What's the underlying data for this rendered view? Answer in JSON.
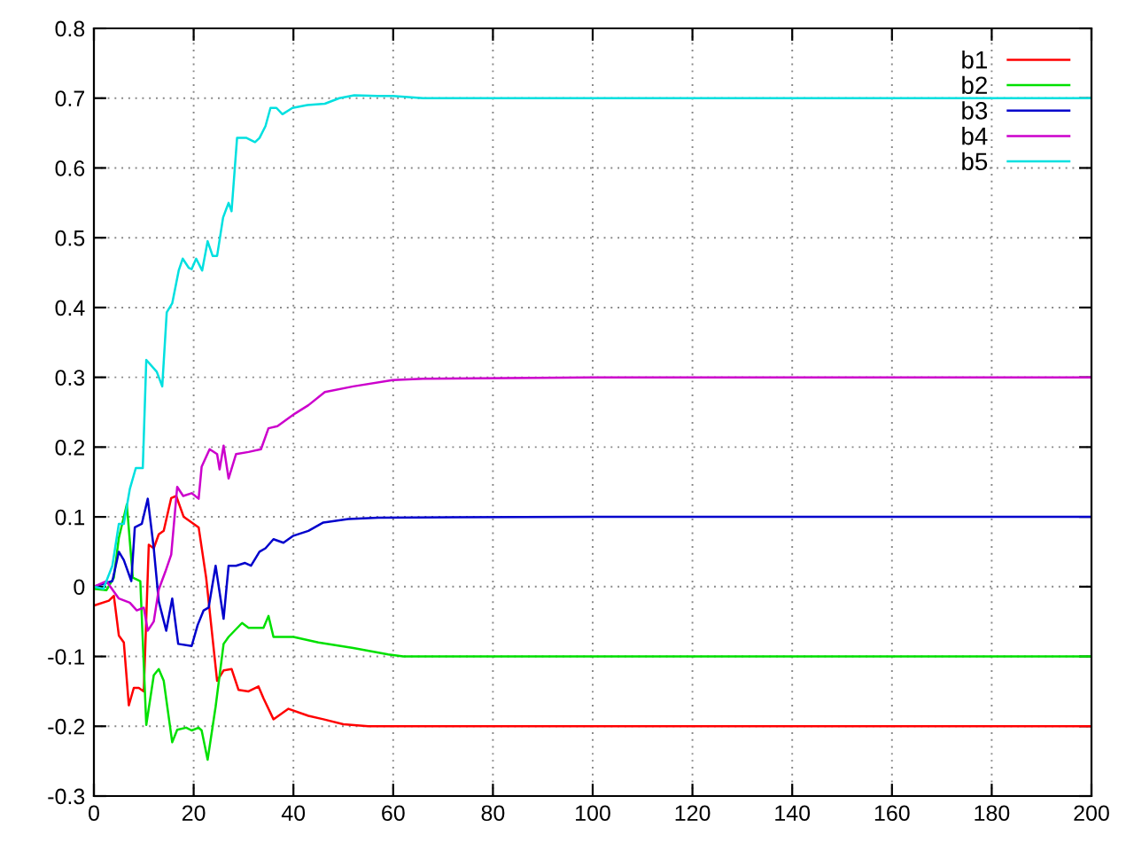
{
  "chart_data": {
    "type": "line",
    "xlim": [
      0,
      200
    ],
    "ylim": [
      -0.3,
      0.8
    ],
    "xticks": [
      0,
      20,
      40,
      60,
      80,
      100,
      120,
      140,
      160,
      180,
      200
    ],
    "yticks": [
      -0.3,
      -0.2,
      -0.1,
      0,
      0.1,
      0.2,
      0.3,
      0.4,
      0.5,
      0.6,
      0.7,
      0.8
    ],
    "grid": true,
    "legend": "top right",
    "line_style": "solid",
    "marker": "none",
    "series": [
      {
        "name": "b1",
        "color": "#ff0000",
        "x": [
          0,
          3,
          4,
          5,
          6,
          7,
          8,
          9,
          10,
          11,
          12,
          13,
          14,
          15.5,
          16.5,
          18,
          20,
          21,
          22.5,
          24.7,
          26,
          27.6,
          29,
          31,
          33,
          34,
          36,
          39,
          43,
          46,
          50,
          55,
          60,
          80,
          100,
          150,
          200
        ],
        "values": [
          -0.027,
          -0.02,
          -0.013,
          -0.07,
          -0.08,
          -0.17,
          -0.145,
          -0.145,
          -0.15,
          0.06,
          0.055,
          0.075,
          0.08,
          0.127,
          0.13,
          0.1,
          0.09,
          0.085,
          0.013,
          -0.135,
          -0.12,
          -0.118,
          -0.148,
          -0.15,
          -0.143,
          -0.16,
          -0.19,
          -0.175,
          -0.185,
          -0.19,
          -0.197,
          -0.2,
          -0.2,
          -0.2,
          -0.2,
          -0.2,
          -0.2
        ]
      },
      {
        "name": "b2",
        "color": "#00e000",
        "x": [
          0,
          2.5,
          4,
          5,
          6.6,
          7.8,
          9.3,
          10.5,
          12,
          13,
          14,
          15.7,
          16.7,
          18.5,
          19.6,
          21,
          21.6,
          22.8,
          24.4,
          26,
          27,
          29.7,
          31,
          34,
          35,
          36,
          40,
          45,
          52,
          59,
          62,
          100,
          150,
          200
        ],
        "values": [
          -0.003,
          -0.005,
          0.013,
          0.07,
          0.118,
          0.013,
          0.008,
          -0.198,
          -0.127,
          -0.118,
          -0.135,
          -0.223,
          -0.205,
          -0.202,
          -0.206,
          -0.202,
          -0.206,
          -0.248,
          -0.172,
          -0.082,
          -0.072,
          -0.052,
          -0.059,
          -0.059,
          -0.042,
          -0.072,
          -0.072,
          -0.08,
          -0.088,
          -0.097,
          -0.1,
          -0.1,
          -0.1,
          -0.1
        ]
      },
      {
        "name": "b3",
        "color": "#0000cc",
        "x": [
          0,
          3.7,
          5,
          6,
          7.5,
          8.2,
          9.6,
          10.8,
          12,
          13,
          14.5,
          15.7,
          16.9,
          19.6,
          20.8,
          22,
          23,
          24.4,
          26,
          27,
          28.5,
          30.3,
          31.5,
          33.2,
          34.4,
          36,
          38,
          40,
          43,
          46,
          51,
          57,
          100,
          150,
          200
        ],
        "values": [
          0,
          0.008,
          0.05,
          0.038,
          0.008,
          0.085,
          0.09,
          0.126,
          0.055,
          -0.021,
          -0.063,
          -0.017,
          -0.082,
          -0.085,
          -0.055,
          -0.034,
          -0.03,
          0.03,
          -0.046,
          0.03,
          0.03,
          0.034,
          0.03,
          0.05,
          0.055,
          0.068,
          0.063,
          0.073,
          0.08,
          0.092,
          0.097,
          0.099,
          0.1,
          0.1,
          0.1
        ]
      },
      {
        "name": "b4",
        "color": "#cc00cc",
        "x": [
          0,
          2.5,
          5,
          7.2,
          8.6,
          10,
          10.8,
          12,
          13,
          14.3,
          15.5,
          16.7,
          17.9,
          19.6,
          21,
          21.6,
          23.2,
          24.7,
          25.2,
          26,
          27,
          28.5,
          31,
          33.5,
          35,
          36.8,
          40.3,
          43,
          46.3,
          52,
          59.9,
          66,
          100,
          150,
          200
        ],
        "values": [
          0,
          0.008,
          -0.017,
          -0.023,
          -0.034,
          -0.03,
          -0.063,
          -0.05,
          -0.004,
          0.021,
          0.046,
          0.143,
          0.13,
          0.134,
          0.126,
          0.172,
          0.197,
          0.19,
          0.168,
          0.202,
          0.155,
          0.19,
          0.193,
          0.197,
          0.227,
          0.23,
          0.248,
          0.26,
          0.279,
          0.287,
          0.296,
          0.298,
          0.3,
          0.3,
          0.3
        ]
      },
      {
        "name": "b5",
        "color": "#00e0e0",
        "x": [
          0,
          1.9,
          3.7,
          5,
          6,
          7.2,
          8.4,
          9.8,
          10.5,
          12.6,
          13.7,
          14.6,
          15.7,
          17,
          17.8,
          19,
          19.6,
          20.5,
          21.7,
          22.8,
          23.8,
          24.7,
          25.9,
          27,
          27.6,
          28.7,
          30.6,
          32.3,
          33.2,
          34.4,
          35.4,
          36.6,
          37.8,
          39.8,
          42.8,
          46.3,
          49.2,
          52.2,
          56.9,
          59.9,
          66,
          100,
          150,
          200
        ],
        "values": [
          0,
          -0.003,
          0.03,
          0.09,
          0.09,
          0.14,
          0.17,
          0.17,
          0.325,
          0.308,
          0.287,
          0.393,
          0.406,
          0.453,
          0.47,
          0.457,
          0.455,
          0.47,
          0.453,
          0.495,
          0.474,
          0.474,
          0.529,
          0.55,
          0.538,
          0.643,
          0.643,
          0.637,
          0.643,
          0.66,
          0.686,
          0.686,
          0.677,
          0.686,
          0.69,
          0.692,
          0.7,
          0.704,
          0.703,
          0.703,
          0.7,
          0.7,
          0.7,
          0.7
        ]
      }
    ]
  }
}
